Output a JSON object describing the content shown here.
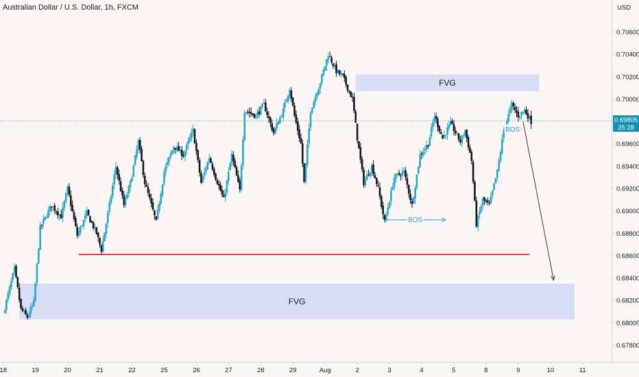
{
  "chart_data": {
    "type": "candlestick",
    "title": "Australian Dollar / U.S. Dollar, 1h, FXCM",
    "currency": "USD",
    "y_ticks": [
      "0.70600",
      "0.70400",
      "0.70200",
      "0.70000",
      "0.69600",
      "0.69400",
      "0.69200",
      "0.69000",
      "0.68800",
      "0.68600",
      "0.68400",
      "0.68200",
      "0.68000",
      "0.67800"
    ],
    "y_tick_values": [
      0.706,
      0.704,
      0.702,
      0.7,
      0.696,
      0.694,
      0.692,
      0.69,
      0.688,
      0.686,
      0.684,
      0.682,
      0.68,
      0.678
    ],
    "ylim": [
      0.6765,
      0.7075
    ],
    "x_ticks": [
      "18",
      "19",
      "20",
      "21",
      "22",
      "25",
      "26",
      "27",
      "28",
      "29",
      "Aug",
      "2",
      "3",
      "4",
      "5",
      "8",
      "9",
      "10",
      "11"
    ],
    "x_tick_values": [
      0,
      1,
      2,
      3,
      4,
      5,
      6,
      7,
      8,
      9,
      10,
      11,
      12,
      13,
      14,
      15,
      16,
      17,
      18
    ],
    "xlim": [
      -0.1,
      18.9
    ],
    "last_price": {
      "price": "0.69805",
      "countdown": "25:28",
      "value": 0.69805
    },
    "path_points": [
      [
        0.0,
        0.6808
      ],
      [
        0.35,
        0.6848
      ],
      [
        0.55,
        0.6812
      ],
      [
        0.75,
        0.6805
      ],
      [
        0.95,
        0.6818
      ],
      [
        1.15,
        0.6885
      ],
      [
        1.5,
        0.6905
      ],
      [
        1.8,
        0.6895
      ],
      [
        2.0,
        0.692
      ],
      [
        2.3,
        0.6878
      ],
      [
        2.6,
        0.6898
      ],
      [
        2.9,
        0.688
      ],
      [
        3.05,
        0.6865
      ],
      [
        3.3,
        0.6905
      ],
      [
        3.5,
        0.694
      ],
      [
        3.75,
        0.6905
      ],
      [
        3.95,
        0.6925
      ],
      [
        4.2,
        0.6962
      ],
      [
        4.4,
        0.6925
      ],
      [
        4.6,
        0.6905
      ],
      [
        4.75,
        0.689
      ],
      [
        5.0,
        0.6935
      ],
      [
        5.3,
        0.6958
      ],
      [
        5.6,
        0.695
      ],
      [
        5.9,
        0.6972
      ],
      [
        6.15,
        0.6925
      ],
      [
        6.4,
        0.6948
      ],
      [
        6.6,
        0.693
      ],
      [
        6.85,
        0.691
      ],
      [
        7.1,
        0.695
      ],
      [
        7.35,
        0.6918
      ],
      [
        7.5,
        0.699
      ],
      [
        7.85,
        0.6985
      ],
      [
        8.1,
        0.6995
      ],
      [
        8.4,
        0.697
      ],
      [
        8.7,
        0.699
      ],
      [
        8.9,
        0.701
      ],
      [
        9.05,
        0.6985
      ],
      [
        9.25,
        0.696
      ],
      [
        9.35,
        0.6925
      ],
      [
        9.55,
        0.699
      ],
      [
        9.85,
        0.7015
      ],
      [
        10.1,
        0.704
      ],
      [
        10.35,
        0.7025
      ],
      [
        10.55,
        0.702
      ],
      [
        10.85,
        0.7
      ],
      [
        11.0,
        0.6965
      ],
      [
        11.2,
        0.6925
      ],
      [
        11.45,
        0.694
      ],
      [
        11.65,
        0.692
      ],
      [
        11.85,
        0.689
      ],
      [
        12.15,
        0.693
      ],
      [
        12.45,
        0.6935
      ],
      [
        12.7,
        0.6905
      ],
      [
        12.95,
        0.695
      ],
      [
        13.2,
        0.696
      ],
      [
        13.4,
        0.6985
      ],
      [
        13.65,
        0.6965
      ],
      [
        13.9,
        0.6978
      ],
      [
        14.2,
        0.6962
      ],
      [
        14.35,
        0.6972
      ],
      [
        14.55,
        0.6945
      ],
      [
        14.7,
        0.6888
      ],
      [
        14.9,
        0.691
      ],
      [
        15.1,
        0.6905
      ],
      [
        15.35,
        0.6935
      ],
      [
        15.55,
        0.6972
      ],
      [
        15.8,
        0.6995
      ],
      [
        16.0,
        0.6985
      ],
      [
        16.2,
        0.699
      ],
      [
        16.4,
        0.698
      ]
    ],
    "fvg_zones": [
      {
        "label": "FVG",
        "x0": 0.5,
        "x1": 17.75,
        "y0": 0.6803,
        "y1": 0.6835
      },
      {
        "label": "FVG",
        "x0": 10.95,
        "x1": 16.65,
        "y0": 0.7007,
        "y1": 0.7022
      }
    ],
    "support_line": {
      "x0": 2.35,
      "x1": 16.35,
      "y": 0.6861
    },
    "bos_markers": [
      {
        "label": "BOS",
        "x0": 11.85,
        "x1": 13.75,
        "y": 0.6892
      },
      {
        "label": "BOS",
        "x0": 15.55,
        "x1": 16.1,
        "y": 0.6973
      }
    ],
    "projection_arrow": {
      "x0": 16.15,
      "y0": 0.698,
      "x1": 17.1,
      "y1": 0.6838
    },
    "colors": {
      "up": "#26a6c9",
      "down": "#131722",
      "fvg": "#d9dcf5",
      "support": "#e0171f",
      "bos": "#2d9fd4",
      "arrow": "#3a3a3a"
    }
  }
}
